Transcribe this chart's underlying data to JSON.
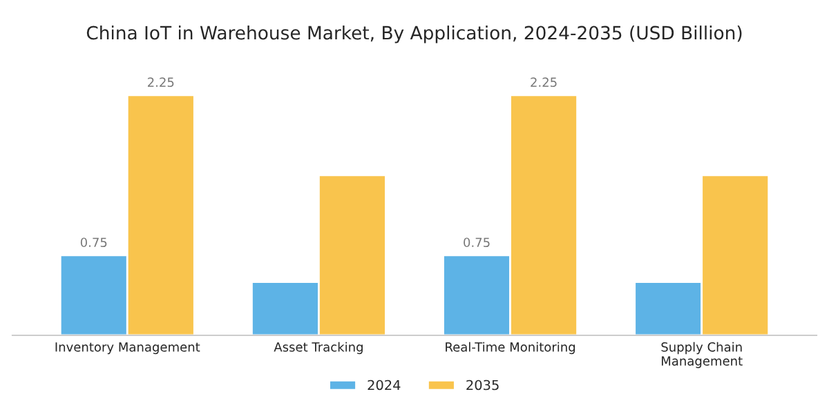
{
  "chart_data": {
    "type": "bar",
    "title": "China IoT in Warehouse Market, By Application, 2024-2035 (USD Billion)",
    "categories": [
      "Inventory Management",
      "Asset Tracking",
      "Real-Time Monitoring",
      "Supply Chain\nManagement"
    ],
    "series": [
      {
        "name": "2024",
        "color": "#5db3e6",
        "values": [
          0.75,
          0.5,
          0.75,
          0.5
        ],
        "value_labels": [
          "0.75",
          null,
          "0.75",
          null
        ]
      },
      {
        "name": "2035",
        "color": "#f9c44d",
        "values": [
          2.25,
          1.5,
          2.25,
          1.5
        ],
        "value_labels": [
          "2.25",
          null,
          "2.25",
          null
        ]
      }
    ],
    "legend": "bottom",
    "grid": false
  }
}
